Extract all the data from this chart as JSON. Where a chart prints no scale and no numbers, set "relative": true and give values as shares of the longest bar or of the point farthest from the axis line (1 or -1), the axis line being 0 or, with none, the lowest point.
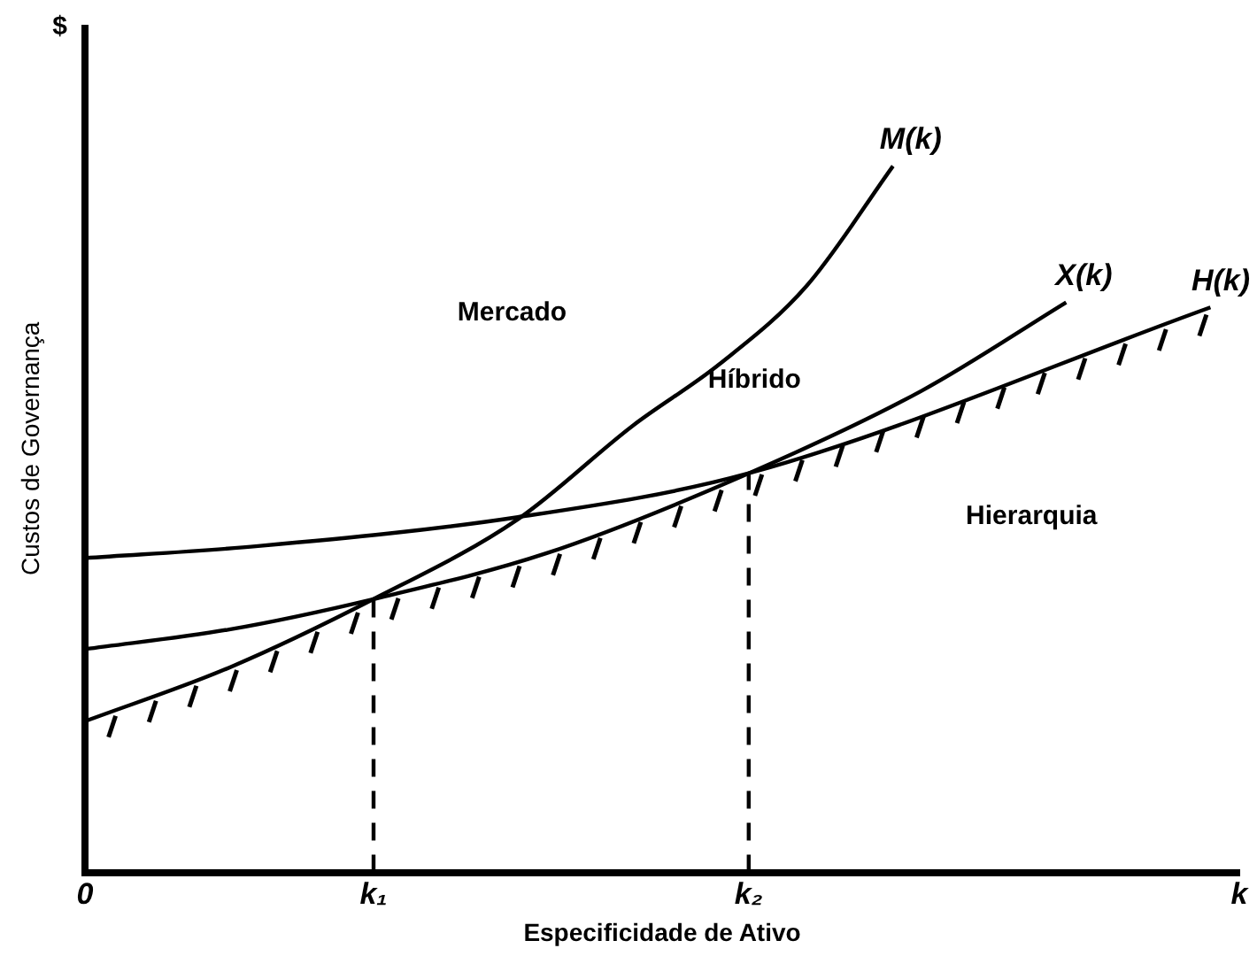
{
  "chart_data": {
    "type": "line",
    "relative": true,
    "xlabel": "Especificidade de Ativo",
    "ylabel": "Custos de Governança",
    "categories": [
      "0",
      null,
      null,
      null,
      null,
      null,
      null,
      null,
      null,
      null,
      "k₁",
      null,
      null,
      null,
      null,
      null,
      null,
      null,
      null,
      null,
      null,
      null,
      null,
      "k₂",
      null,
      null,
      null,
      null,
      null,
      null,
      null,
      null,
      null,
      null,
      null,
      null,
      null,
      null,
      null,
      null,
      "k"
    ],
    "series": [
      {
        "name": "M(k)",
        "color": "#000000",
        "values": [
          0.214,
          null,
          null,
          null,
          null,
          0.29,
          null,
          null,
          null,
          null,
          0.387,
          null,
          null,
          null,
          null,
          0.5,
          null,
          null,
          null,
          0.633,
          null,
          null,
          0.72,
          null,
          null,
          0.83,
          null,
          null,
          1,
          null,
          null,
          null,
          null,
          null,
          null,
          null,
          null,
          null,
          null,
          null,
          null
        ]
      },
      {
        "name": "X(k)",
        "color": "#000000",
        "values": [
          0.316,
          null,
          null,
          null,
          null,
          0.344,
          null,
          null,
          null,
          null,
          0.387,
          null,
          null,
          null,
          null,
          null,
          0.452,
          null,
          null,
          null,
          null,
          null,
          null,
          0.565,
          null,
          null,
          null,
          null,
          null,
          0.682,
          null,
          null,
          null,
          null,
          0.807,
          null,
          null,
          null,
          null,
          null,
          null
        ]
      },
      {
        "name": "H(k)",
        "color": "#000000",
        "values": [
          0.445,
          null,
          null,
          null,
          null,
          null,
          0.462,
          null,
          null,
          null,
          null,
          null,
          null,
          null,
          null,
          0.503,
          null,
          null,
          null,
          null,
          null,
          null,
          null,
          0.565,
          null,
          null,
          null,
          null,
          null,
          null,
          null,
          null,
          null,
          null,
          null,
          null,
          null,
          null,
          null,
          0.8,
          null
        ]
      }
    ],
    "ref_lines": [
      {
        "axis": "x",
        "value": "k₁",
        "line_style": "dashed",
        "color": "#000000"
      },
      {
        "axis": "x",
        "value": "k₂",
        "line_style": "dashed",
        "color": "#000000"
      }
    ],
    "annotations": [
      "$",
      "Mercado",
      "Híbrido",
      "Hierarquia"
    ],
    "legend": false,
    "grid": false,
    "marker": "none"
  }
}
